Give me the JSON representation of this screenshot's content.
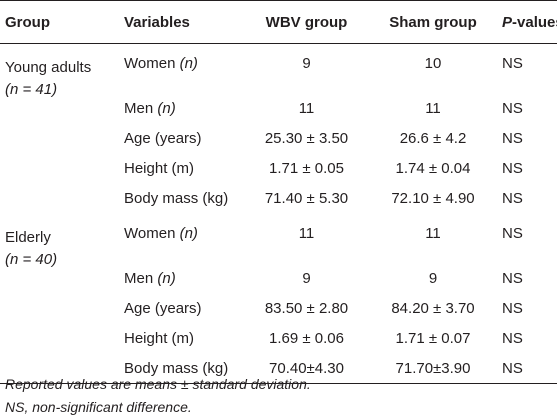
{
  "table": {
    "headers": {
      "group": "Group",
      "variables": "Variables",
      "wbv": "WBV group",
      "sham": "Sham group",
      "p_values_prefix": "P",
      "p_values_suffix": "-values"
    },
    "sections": [
      {
        "group_label": "Young adults",
        "group_n": "(n = 41)",
        "rows": [
          {
            "variable": "Women",
            "variable_unit": "(n)",
            "wbv": "9",
            "sham": "10",
            "p": "NS"
          },
          {
            "variable": "Men",
            "variable_unit": "(n)",
            "wbv": "11",
            "sham": "11",
            "p": "NS"
          },
          {
            "variable": "Age (years)",
            "variable_unit": "",
            "wbv": "25.30 ± 3.50",
            "sham": "26.6 ± 4.2",
            "p": "NS"
          },
          {
            "variable": "Height (m)",
            "variable_unit": "",
            "wbv": "1.71 ± 0.05",
            "sham": "1.74 ± 0.04",
            "p": "NS"
          },
          {
            "variable": "Body mass (kg)",
            "variable_unit": "",
            "wbv": "71.40 ± 5.30",
            "sham": "72.10 ± 4.90",
            "p": "NS"
          }
        ]
      },
      {
        "group_label": "Elderly",
        "group_n": "(n = 40)",
        "rows": [
          {
            "variable": "Women",
            "variable_unit": "(n)",
            "wbv": "11",
            "sham": "11",
            "p": "NS"
          },
          {
            "variable": "Men",
            "variable_unit": "(n)",
            "wbv": "9",
            "sham": "9",
            "p": "NS"
          },
          {
            "variable": "Age (years)",
            "variable_unit": "",
            "wbv": "83.50 ± 2.80",
            "sham": "84.20 ± 3.70",
            "p": "NS"
          },
          {
            "variable": "Height (m)",
            "variable_unit": "",
            "wbv": "1.69 ± 0.06",
            "sham": "1.71 ± 0.07",
            "p": "NS"
          },
          {
            "variable": "Body mass (kg)",
            "variable_unit": "",
            "wbv": "70.40±4.30",
            "sham": "71.70±3.90",
            "p": "NS"
          }
        ]
      }
    ]
  },
  "footnotes": {
    "line1": "Reported values are means ± standard deviation.",
    "line2": "NS, non-significant difference."
  },
  "colors": {
    "text": "#231f20",
    "rule": "#231f20",
    "background": "#ffffff"
  }
}
